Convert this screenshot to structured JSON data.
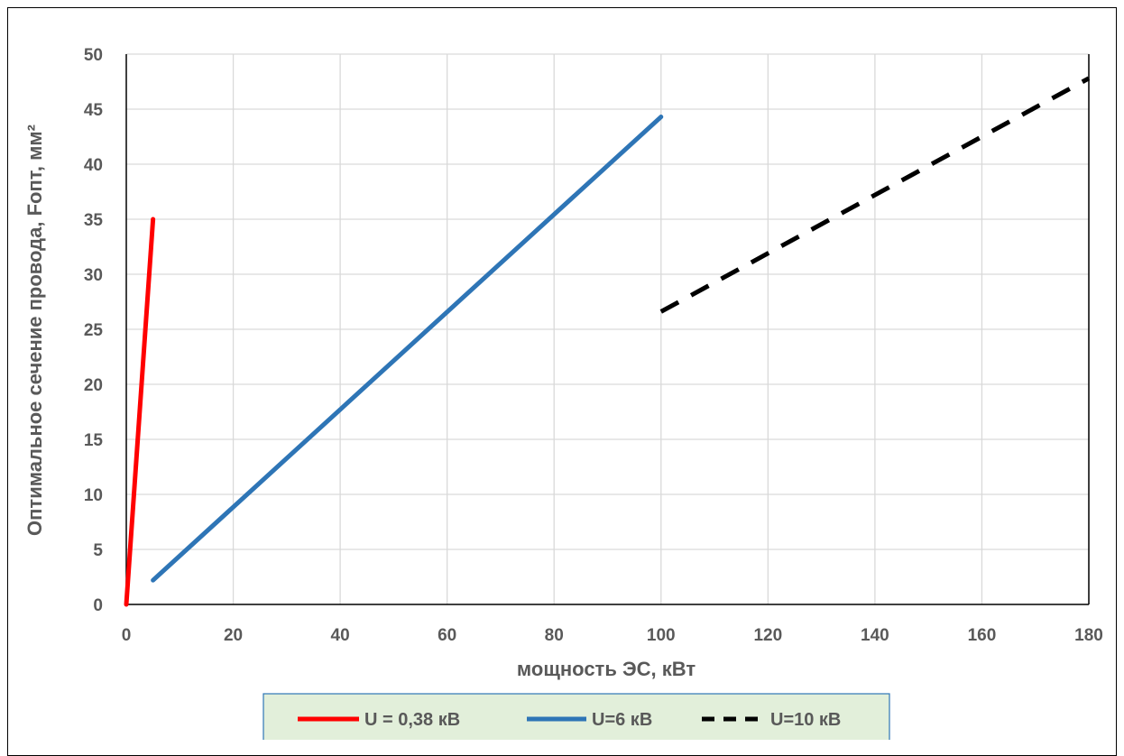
{
  "chart_data": {
    "type": "line",
    "xlabel": "мощность ЭС, кВт",
    "ylabel": "Оптимальное сечение провода, Fопт, мм²",
    "xlim": [
      0,
      180
    ],
    "ylim": [
      0,
      50
    ],
    "x_ticks": [
      0,
      20,
      40,
      60,
      80,
      100,
      120,
      140,
      160,
      180
    ],
    "y_ticks": [
      0,
      5,
      10,
      15,
      20,
      25,
      30,
      35,
      40,
      45,
      50
    ],
    "grid": true,
    "legend_position": "bottom",
    "series": [
      {
        "name": "U = 0,38 кВ",
        "color": "#ff0000",
        "dash": "solid",
        "x": [
          0,
          5
        ],
        "y": [
          0,
          35
        ]
      },
      {
        "name": "U=6 кВ",
        "color": "#2e75b6",
        "dash": "solid",
        "x": [
          5,
          100
        ],
        "y": [
          2.2,
          44.3
        ]
      },
      {
        "name": "U=10 кВ",
        "color": "#000000",
        "dash": "dashed",
        "x": [
          100,
          180
        ],
        "y": [
          26.6,
          47.8
        ]
      }
    ]
  }
}
